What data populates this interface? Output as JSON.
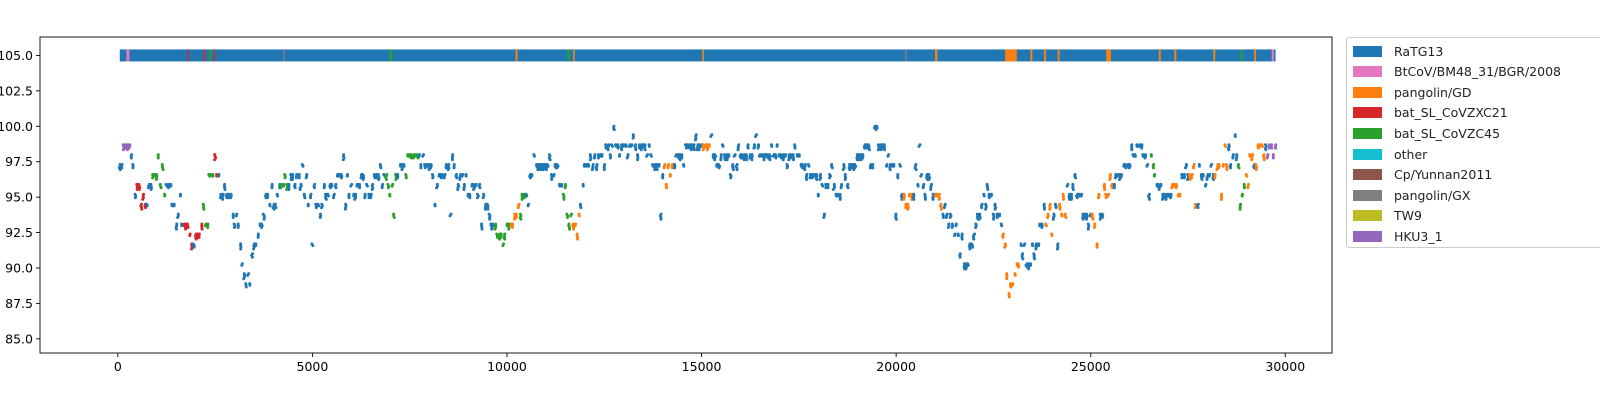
{
  "chart_data": {
    "type": "scatter",
    "title": "",
    "xlabel": "",
    "ylabel": "",
    "xlim": [
      -2000,
      31200
    ],
    "ylim": [
      84.0,
      106.3
    ],
    "x_ticks": [
      0,
      5000,
      10000,
      15000,
      20000,
      25000,
      30000
    ],
    "x_tick_labels": [
      "0",
      "5000",
      "10000",
      "15000",
      "20000",
      "25000",
      "30000"
    ],
    "y_ticks": [
      85.0,
      87.5,
      90.0,
      92.5,
      95.0,
      97.5,
      100.0,
      102.5,
      105.0
    ],
    "y_tick_labels": [
      "85.0",
      "87.5",
      "90.0",
      "92.5",
      "95.0",
      "97.5",
      "100.0",
      "102.5",
      "105.0"
    ],
    "grid": false,
    "legend_position": "outside-right",
    "marker": "point",
    "x_extent": [
      50,
      29750
    ],
    "top_bar_y": 105.0,
    "series": [
      {
        "name": "RaTG13",
        "color": "#1f77b4"
      },
      {
        "name": "BtCoV/BM48_31/BGR/2008",
        "color": "#e377c2"
      },
      {
        "name": "pangolin/GD",
        "color": "#ff7f0e"
      },
      {
        "name": "bat_SL_CoVZXC21",
        "color": "#d62728"
      },
      {
        "name": "bat_SL_CoVZC45",
        "color": "#2ca02c"
      },
      {
        "name": "other",
        "color": "#17becf"
      },
      {
        "name": "Cp/Yunnan2011",
        "color": "#8c564b"
      },
      {
        "name": "pangolin/GX",
        "color": "#7f7f7f"
      },
      {
        "name": "TW9",
        "color": "#bcbd22"
      },
      {
        "name": "HKU3_1",
        "color": "#9467bd"
      }
    ],
    "profile": [
      [
        50,
        97.3
      ],
      [
        300,
        98.5
      ],
      [
        500,
        96.0
      ],
      [
        700,
        94.5
      ],
      [
        900,
        97.0
      ],
      [
        1100,
        96.5
      ],
      [
        1300,
        95.5
      ],
      [
        1500,
        94.0
      ],
      [
        1700,
        93.0
      ],
      [
        1900,
        92.0
      ],
      [
        2100,
        92.5
      ],
      [
        2300,
        96.0
      ],
      [
        2500,
        97.2
      ],
      [
        2700,
        96.0
      ],
      [
        2900,
        94.5
      ],
      [
        3100,
        93.0
      ],
      [
        3300,
        88.5
      ],
      [
        3500,
        91.5
      ],
      [
        3700,
        93.5
      ],
      [
        3900,
        95.0
      ],
      [
        4100,
        95.5
      ],
      [
        4300,
        96.0
      ],
      [
        4600,
        96.5
      ],
      [
        4900,
        95.5
      ],
      [
        5200,
        94.5
      ],
      [
        5500,
        96.0
      ],
      [
        5800,
        96.5
      ],
      [
        6100,
        95.5
      ],
      [
        6400,
        96.0
      ],
      [
        6700,
        96.5
      ],
      [
        7000,
        95.5
      ],
      [
        7300,
        97.5
      ],
      [
        7600,
        97.8
      ],
      [
        7900,
        97.5
      ],
      [
        8200,
        96.5
      ],
      [
        8500,
        97.0
      ],
      [
        8800,
        96.5
      ],
      [
        9100,
        96.0
      ],
      [
        9400,
        95.5
      ],
      [
        9700,
        92.5
      ],
      [
        9900,
        92.0
      ],
      [
        10200,
        93.5
      ],
      [
        10500,
        96.0
      ],
      [
        10800,
        97.5
      ],
      [
        11100,
        97.0
      ],
      [
        11400,
        96.0
      ],
      [
        11600,
        94.0
      ],
      [
        11800,
        92.5
      ],
      [
        12000,
        97.0
      ],
      [
        12300,
        97.5
      ],
      [
        12600,
        98.5
      ],
      [
        12900,
        99.0
      ],
      [
        13200,
        98.5
      ],
      [
        13500,
        99.0
      ],
      [
        13800,
        97.5
      ],
      [
        14100,
        96.0
      ],
      [
        14300,
        97.5
      ],
      [
        14600,
        98.5
      ],
      [
        14900,
        99.0
      ],
      [
        15200,
        98.5
      ],
      [
        15500,
        98.0
      ],
      [
        15800,
        97.5
      ],
      [
        16100,
        98.0
      ],
      [
        16400,
        98.5
      ],
      [
        16700,
        98.0
      ],
      [
        17000,
        98.5
      ],
      [
        17300,
        98.0
      ],
      [
        17600,
        97.5
      ],
      [
        17900,
        96.5
      ],
      [
        18200,
        96.0
      ],
      [
        18500,
        95.5
      ],
      [
        18800,
        97.0
      ],
      [
        19100,
        98.0
      ],
      [
        19400,
        99.5
      ],
      [
        19700,
        98.5
      ],
      [
        20000,
        96.5
      ],
      [
        20300,
        94.5
      ],
      [
        20600,
        96.5
      ],
      [
        20900,
        96.0
      ],
      [
        21200,
        94.0
      ],
      [
        21500,
        92.5
      ],
      [
        21800,
        90.0
      ],
      [
        22100,
        93.5
      ],
      [
        22400,
        95.5
      ],
      [
        22700,
        93.5
      ],
      [
        22900,
        88.0
      ],
      [
        23200,
        91.5
      ],
      [
        23500,
        90.0
      ],
      [
        23700,
        93.0
      ],
      [
        24000,
        95.0
      ],
      [
        24300,
        94.5
      ],
      [
        24600,
        96.0
      ],
      [
        24900,
        94.0
      ],
      [
        25100,
        93.5
      ],
      [
        25400,
        95.5
      ],
      [
        25700,
        96.5
      ],
      [
        26000,
        97.5
      ],
      [
        26300,
        98.5
      ],
      [
        26600,
        97.0
      ],
      [
        26900,
        95.0
      ],
      [
        27200,
        96.0
      ],
      [
        27500,
        96.5
      ],
      [
        27800,
        97.0
      ],
      [
        28100,
        96.5
      ],
      [
        28400,
        97.5
      ],
      [
        28700,
        98.5
      ],
      [
        28900,
        95.5
      ],
      [
        29200,
        98.0
      ],
      [
        29500,
        98.8
      ],
      [
        29750,
        98.5
      ]
    ],
    "color_segments": [
      {
        "series": "HKU3_1",
        "x0": 150,
        "x1": 300
      },
      {
        "series": "bat_SL_CoVZXC21",
        "x0": 500,
        "x1": 700
      },
      {
        "series": "bat_SL_CoVZC45",
        "x0": 900,
        "x1": 1200
      },
      {
        "series": "bat_SL_CoVZXC21",
        "x0": 1700,
        "x1": 1900
      },
      {
        "series": "bat_SL_CoVZXC21",
        "x0": 2000,
        "x1": 2150
      },
      {
        "series": "bat_SL_CoVZC45",
        "x0": 2200,
        "x1": 2450
      },
      {
        "series": "bat_SL_CoVZXC21",
        "x0": 2450,
        "x1": 2550
      },
      {
        "series": "bat_SL_CoVZC45",
        "x0": 4200,
        "x1": 4350
      },
      {
        "series": "bat_SL_CoVZC45",
        "x0": 6900,
        "x1": 7150
      },
      {
        "series": "bat_SL_CoVZC45",
        "x0": 7400,
        "x1": 7700
      },
      {
        "series": "bat_SL_CoVZC45",
        "x0": 9700,
        "x1": 10050
      },
      {
        "series": "pangolin/GD",
        "x0": 10050,
        "x1": 10300
      },
      {
        "series": "bat_SL_CoVZC45",
        "x0": 10300,
        "x1": 10450
      },
      {
        "series": "bat_SL_CoVZC45",
        "x0": 11450,
        "x1": 11650
      },
      {
        "series": "pangolin/GD",
        "x0": 11650,
        "x1": 11850
      },
      {
        "series": "pangolin/GD",
        "x0": 14050,
        "x1": 14250
      },
      {
        "series": "pangolin/GD",
        "x0": 15050,
        "x1": 15200
      },
      {
        "series": "pangolin/GD",
        "x0": 20200,
        "x1": 20400
      },
      {
        "series": "pangolin/GD",
        "x0": 21000,
        "x1": 21150
      },
      {
        "series": "pangolin/GD",
        "x0": 22750,
        "x1": 23150
      },
      {
        "series": "pangolin/GD",
        "x0": 23850,
        "x1": 24000
      },
      {
        "series": "pangolin/GD",
        "x0": 24200,
        "x1": 24350
      },
      {
        "series": "pangolin/GD",
        "x0": 25050,
        "x1": 25200
      },
      {
        "series": "pangolin/GD",
        "x0": 25350,
        "x1": 25550
      },
      {
        "series": "bat_SL_CoVZC45",
        "x0": 26550,
        "x1": 26650
      },
      {
        "series": "pangolin/GD",
        "x0": 27100,
        "x1": 27300
      },
      {
        "series": "pangolin/GD",
        "x0": 27550,
        "x1": 27700
      },
      {
        "series": "pangolin/GD",
        "x0": 28200,
        "x1": 28500
      },
      {
        "series": "bat_SL_CoVZC45",
        "x0": 28800,
        "x1": 28950
      },
      {
        "series": "pangolin/GD",
        "x0": 29000,
        "x1": 29150
      },
      {
        "series": "pangolin/GD",
        "x0": 29250,
        "x1": 29450
      },
      {
        "series": "HKU3_1",
        "x0": 29550,
        "x1": 29750
      }
    ],
    "top_bar_segments": [
      {
        "series": "BtCoV/BM48_31/BGR/2008",
        "x0": 220,
        "x1": 300
      },
      {
        "series": "bat_SL_CoVZXC21",
        "x0": 1790,
        "x1": 1830
      },
      {
        "series": "bat_SL_CoVZXC21",
        "x0": 2200,
        "x1": 2250
      },
      {
        "series": "bat_SL_CoVZC45",
        "x0": 2350,
        "x1": 2400
      },
      {
        "series": "bat_SL_CoVZXC21",
        "x0": 2460,
        "x1": 2500
      },
      {
        "series": "pangolin/GX",
        "x0": 4250,
        "x1": 4290
      },
      {
        "series": "bat_SL_CoVZC45",
        "x0": 6980,
        "x1": 7050
      },
      {
        "series": "pangolin/GD",
        "x0": 10220,
        "x1": 10270
      },
      {
        "series": "bat_SL_CoVZC45",
        "x0": 11550,
        "x1": 11610
      },
      {
        "series": "pangolin/GD",
        "x0": 11700,
        "x1": 11740
      },
      {
        "series": "pangolin/GD",
        "x0": 15020,
        "x1": 15060
      },
      {
        "series": "pangolin/GX",
        "x0": 20230,
        "x1": 20270
      },
      {
        "series": "pangolin/GD",
        "x0": 21000,
        "x1": 21060
      },
      {
        "series": "pangolin/GD",
        "x0": 22800,
        "x1": 23100
      },
      {
        "series": "pangolin/GD",
        "x0": 23450,
        "x1": 23500
      },
      {
        "series": "pangolin/GD",
        "x0": 23800,
        "x1": 23850
      },
      {
        "series": "pangolin/GD",
        "x0": 24150,
        "x1": 24200
      },
      {
        "series": "pangolin/GD",
        "x0": 25400,
        "x1": 25520
      },
      {
        "series": "pangolin/GD",
        "x0": 26750,
        "x1": 26800
      },
      {
        "series": "pangolin/GD",
        "x0": 27150,
        "x1": 27200
      },
      {
        "series": "pangolin/GD",
        "x0": 28150,
        "x1": 28200
      },
      {
        "series": "bat_SL_CoVZC45",
        "x0": 28850,
        "x1": 28900
      },
      {
        "series": "pangolin/GD",
        "x0": 29200,
        "x1": 29250
      },
      {
        "series": "BtCoV/BM48_31/BGR/2008",
        "x0": 29650,
        "x1": 29710
      }
    ]
  }
}
